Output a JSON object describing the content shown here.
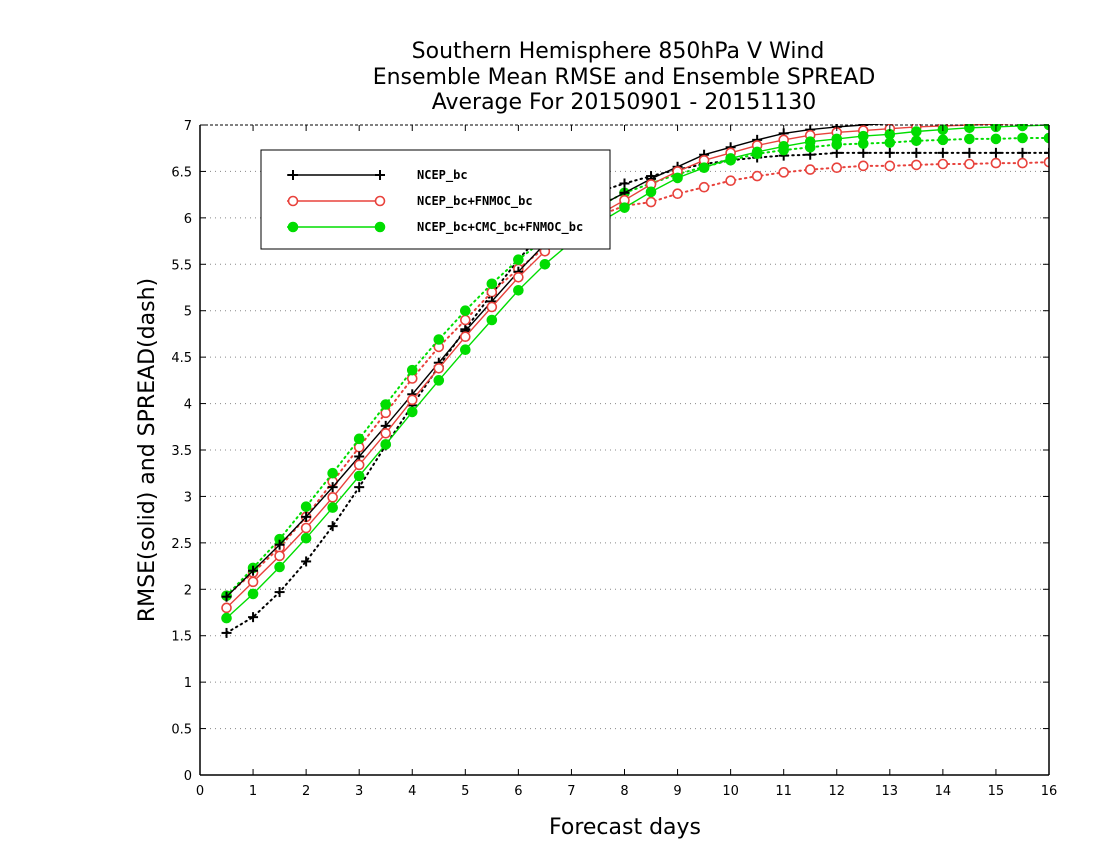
{
  "chart_data": {
    "type": "line",
    "title": [
      "Southern Hemisphere 850hPa V Wind",
      "Ensemble Mean RMSE and Ensemble SPREAD",
      "Average For 20150901 - 20151130"
    ],
    "xlabel": "Forecast days",
    "ylabel": "RMSE(solid) and SPREAD(dash)",
    "xlim": [
      0,
      16
    ],
    "ylim": [
      0,
      7
    ],
    "xticks": [
      0,
      1,
      2,
      3,
      4,
      5,
      6,
      7,
      8,
      9,
      10,
      11,
      12,
      13,
      14,
      15,
      16
    ],
    "yticks": [
      0,
      0.5,
      1,
      1.5,
      2,
      2.5,
      3,
      3.5,
      4,
      4.5,
      5,
      5.5,
      6,
      6.5,
      7
    ],
    "ytick_labels": [
      "0",
      "0.5",
      "1",
      "1.5",
      "2",
      "2.5",
      "3",
      "3.5",
      "4",
      "4.5",
      "5",
      "5.5",
      "6",
      "6.5",
      "7"
    ],
    "grid": "horizontal-dotted",
    "legend_position": "top-left",
    "x": [
      0.5,
      1,
      1.5,
      2,
      2.5,
      3,
      3.5,
      4,
      4.5,
      5,
      5.5,
      6,
      6.5,
      7,
      7.5,
      8,
      8.5,
      9,
      9.5,
      10,
      10.5,
      11,
      11.5,
      12,
      12.5,
      13,
      13.5,
      14,
      14.5,
      15,
      15.5,
      16
    ],
    "series": [
      {
        "name": "NCEP_bc",
        "color": "#000000",
        "marker": "plus",
        "kind": "rmse",
        "values": [
          1.92,
          2.2,
          2.48,
          2.78,
          3.1,
          3.43,
          3.76,
          4.1,
          4.44,
          4.78,
          5.1,
          5.42,
          5.72,
          5.95,
          6.12,
          6.27,
          6.42,
          6.55,
          6.68,
          6.76,
          6.84,
          6.91,
          6.95,
          6.98,
          7.0,
          7.02,
          7.03,
          7.04,
          7.05,
          7.06,
          7.07,
          7.08
        ]
      },
      {
        "name": "NCEP_bc",
        "color": "#000000",
        "marker": "plus",
        "kind": "spread",
        "values": [
          1.53,
          1.7,
          1.97,
          2.3,
          2.68,
          3.1,
          3.55,
          3.98,
          4.4,
          4.8,
          5.18,
          5.55,
          5.87,
          6.12,
          6.28,
          6.37,
          6.45,
          6.52,
          6.58,
          6.62,
          6.65,
          6.67,
          6.68,
          6.7,
          6.7,
          6.7,
          6.7,
          6.7,
          6.7,
          6.7,
          6.7,
          6.7
        ]
      },
      {
        "name": "NCEP_bc+FNMOC_bc",
        "color": "#e8423c",
        "marker": "circle-open",
        "kind": "rmse",
        "values": [
          1.8,
          2.08,
          2.36,
          2.66,
          2.99,
          3.34,
          3.68,
          4.04,
          4.38,
          4.72,
          5.04,
          5.36,
          5.64,
          5.86,
          6.03,
          6.19,
          6.36,
          6.5,
          6.62,
          6.7,
          6.78,
          6.84,
          6.89,
          6.92,
          6.94,
          6.96,
          6.98,
          6.99,
          7.0,
          7.01,
          7.02,
          7.03
        ]
      },
      {
        "name": "NCEP_bc+FNMOC_bc",
        "color": "#e8423c",
        "marker": "circle-open",
        "kind": "spread",
        "values": [
          1.93,
          2.18,
          2.45,
          2.78,
          3.16,
          3.53,
          3.9,
          4.27,
          4.61,
          4.9,
          5.2,
          5.45,
          5.68,
          5.87,
          6.02,
          6.13,
          6.17,
          6.26,
          6.33,
          6.4,
          6.45,
          6.49,
          6.52,
          6.54,
          6.56,
          6.56,
          6.57,
          6.58,
          6.58,
          6.59,
          6.59,
          6.6
        ]
      },
      {
        "name": "NCEP_bc+CMC_bc+FNMOC_bc",
        "color": "#00dd00",
        "marker": "circle-filled",
        "kind": "rmse",
        "values": [
          1.69,
          1.95,
          2.24,
          2.55,
          2.88,
          3.22,
          3.56,
          3.91,
          4.25,
          4.58,
          4.9,
          5.22,
          5.5,
          5.74,
          5.94,
          6.11,
          6.28,
          6.43,
          6.54,
          6.64,
          6.71,
          6.77,
          6.82,
          6.85,
          6.88,
          6.9,
          6.93,
          6.95,
          6.97,
          6.98,
          6.99,
          7.0
        ]
      },
      {
        "name": "NCEP_bc+CMC_bc+FNMOC_bc",
        "color": "#00dd00",
        "marker": "circle-filled",
        "kind": "spread",
        "values": [
          1.93,
          2.23,
          2.54,
          2.89,
          3.25,
          3.62,
          3.99,
          4.36,
          4.69,
          5.0,
          5.29,
          5.55,
          5.77,
          5.96,
          6.12,
          6.27,
          6.37,
          6.47,
          6.55,
          6.62,
          6.69,
          6.73,
          6.76,
          6.79,
          6.8,
          6.81,
          6.83,
          6.84,
          6.85,
          6.85,
          6.86,
          6.86
        ]
      }
    ],
    "legend": [
      {
        "name": "NCEP_bc",
        "color": "#000000",
        "marker": "plus"
      },
      {
        "name": "NCEP_bc+FNMOC_bc",
        "color": "#e8423c",
        "marker": "circle-open"
      },
      {
        "name": "NCEP_bc+CMC_bc+FNMOC_bc",
        "color": "#00dd00",
        "marker": "circle-filled"
      }
    ]
  }
}
